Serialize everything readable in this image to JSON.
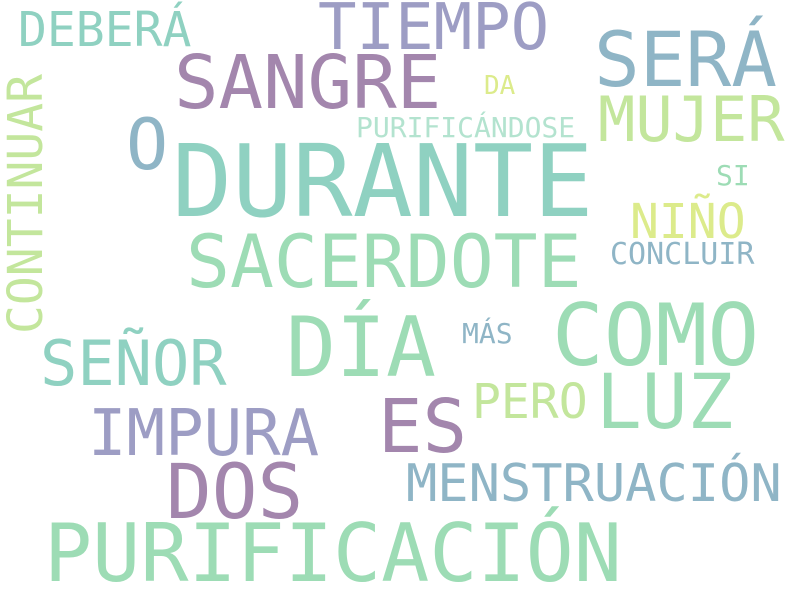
{
  "colors": {
    "background": "#ffffff",
    "teal": "#8fd1c1",
    "mint": "#9ddcb5",
    "slate": "#8fb5c6",
    "lavender": "#9d9dc4",
    "mauve": "#a386ad",
    "lime": "#c3e69c",
    "yellow": "#dceb8b"
  },
  "words": [
    "DURANTE",
    "PURIFICACIÓN",
    "SACERDOTE",
    "SANGRE",
    "COMO",
    "DÍA",
    "SERÁ",
    "DOS",
    "IMPURA",
    "LUZ",
    "MENSTRUACIÓN",
    "ES",
    "MUJER",
    "TIEMPO",
    "SEÑOR",
    "CONTINUAR",
    "O",
    "DEBERÁ",
    "NIÑO",
    "PERO",
    "PURIFICÁNDOSE",
    "CONCLUIR",
    "SI",
    "MÁS",
    "DA"
  ]
}
